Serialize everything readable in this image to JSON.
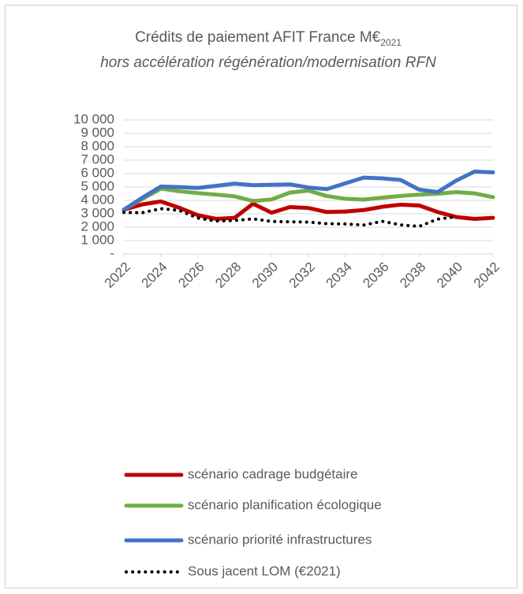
{
  "chart_data": {
    "type": "line",
    "title": "Crédits de paiement AFIT France M€",
    "title_subscript": "2021",
    "subtitle": "hors accélération régénération/modernisation RFN",
    "x": [
      2022,
      2023,
      2024,
      2025,
      2026,
      2027,
      2028,
      2029,
      2030,
      2031,
      2032,
      2033,
      2034,
      2035,
      2036,
      2037,
      2038,
      2039,
      2040,
      2041,
      2042
    ],
    "xlim": [
      2022,
      2042
    ],
    "xticks": [
      2022,
      2024,
      2026,
      2028,
      2030,
      2032,
      2034,
      2036,
      2038,
      2040,
      2042
    ],
    "ylim": [
      0,
      10000
    ],
    "yticks": [
      {
        "value": 0,
        "label": "-"
      },
      {
        "value": 1000,
        "label": "1 000"
      },
      {
        "value": 2000,
        "label": "2 000"
      },
      {
        "value": 3000,
        "label": "3 000"
      },
      {
        "value": 4000,
        "label": "4 000"
      },
      {
        "value": 5000,
        "label": "5 000"
      },
      {
        "value": 6000,
        "label": "6 000"
      },
      {
        "value": 7000,
        "label": "7 000"
      },
      {
        "value": 8000,
        "label": "8 000"
      },
      {
        "value": 9000,
        "label": "9 000"
      },
      {
        "value": 10000,
        "label": "10 000"
      }
    ],
    "grid": true,
    "series": [
      {
        "name": "scénario cadrage budgétaire",
        "color": "#c00000",
        "style": "solid",
        "values": [
          3300,
          3700,
          3920,
          3450,
          2900,
          2620,
          2700,
          3750,
          3080,
          3500,
          3430,
          3130,
          3170,
          3280,
          3520,
          3680,
          3620,
          3130,
          2760,
          2620,
          2700
        ]
      },
      {
        "name": "scénario planification écologique",
        "color": "#70ad47",
        "style": "solid",
        "values": [
          3300,
          4100,
          4870,
          4680,
          4540,
          4430,
          4300,
          3950,
          4070,
          4580,
          4730,
          4320,
          4120,
          4060,
          4200,
          4330,
          4430,
          4490,
          4620,
          4520,
          4240
        ]
      },
      {
        "name": "scénario priorité infrastructures",
        "color": "#4472c4",
        "style": "solid",
        "values": [
          3300,
          4200,
          5030,
          4990,
          4930,
          5080,
          5250,
          5130,
          5160,
          5190,
          4960,
          4840,
          5270,
          5700,
          5640,
          5520,
          4800,
          4620,
          5470,
          6150,
          6090
        ]
      },
      {
        "name": "Sous jacent LOM (€2021)",
        "color": "#000000",
        "style": "dotted",
        "values": [
          3100,
          3080,
          3380,
          3250,
          2680,
          2460,
          2500,
          2620,
          2430,
          2400,
          2380,
          2260,
          2240,
          2160,
          2440,
          2170,
          2060,
          2600,
          2780,
          null,
          null
        ]
      }
    ]
  }
}
